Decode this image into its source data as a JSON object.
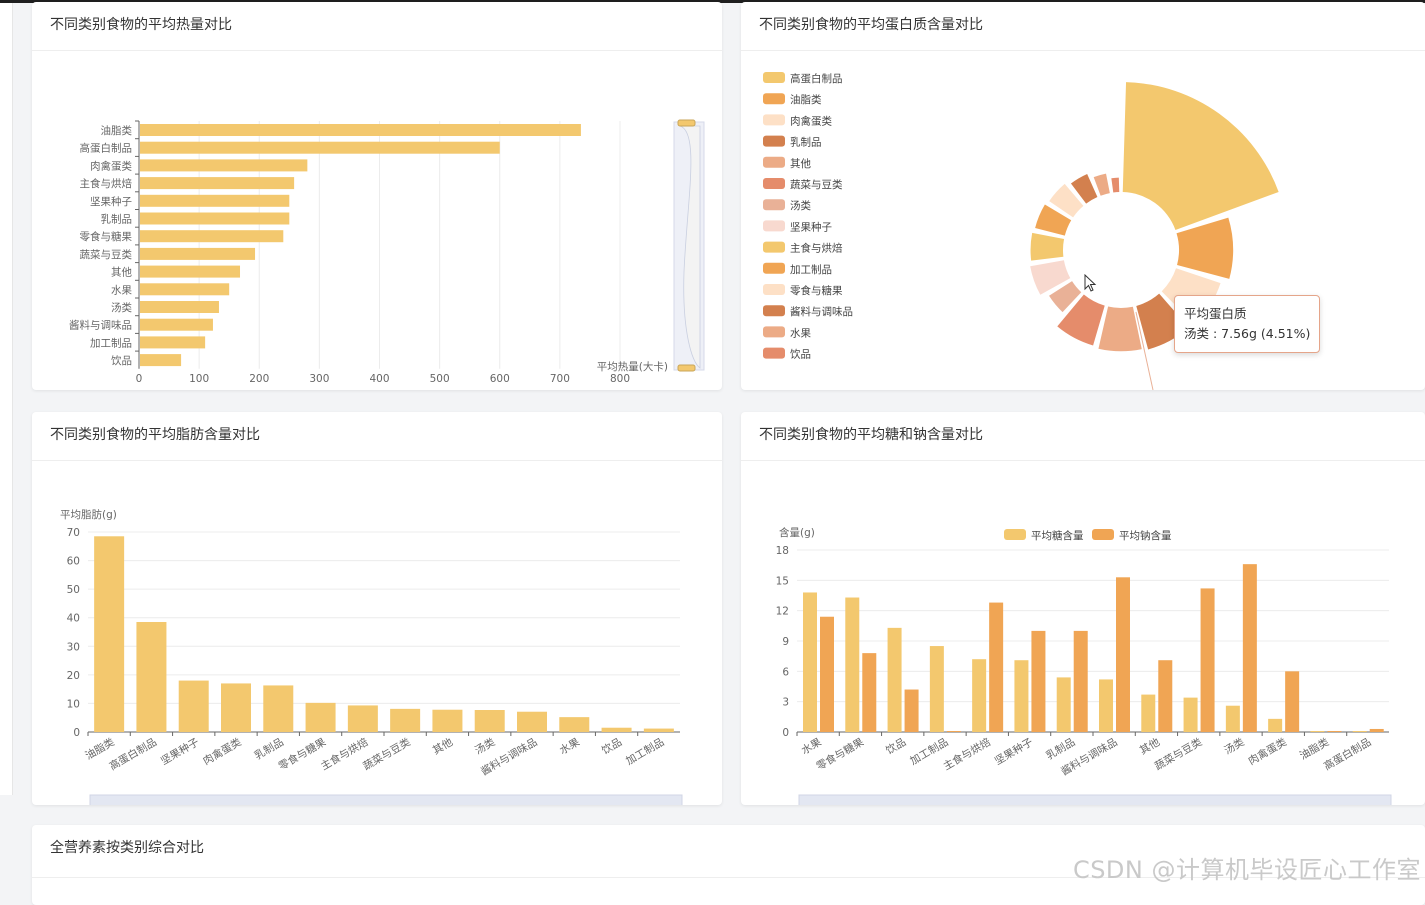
{
  "cards": {
    "calories_title": "不同类别食物的平均热量对比",
    "protein_title": "不同类别食物的平均蛋白质含量对比",
    "fat_title": "不同类别食物的平均脂肪含量对比",
    "sugar_title": "不同类别食物的平均糖和钠含量对比",
    "overall_title": "全营养素按类别综合对比"
  },
  "tooltip": {
    "title": "平均蛋白质",
    "text": "汤类 : 7.56g (4.51%)"
  },
  "watermark": "CSDN @计算机毕设匠心工作室",
  "colors": {
    "yellow": "#f3c86e",
    "orange": "#f0a554",
    "peach": "#fde0c6",
    "brown": "#d3804e",
    "salmon": "#ecab86",
    "coral": "#e58c6b",
    "tan": "#e9b197",
    "pink": "#f8d9cf"
  },
  "chart_data": [
    {
      "type": "bar",
      "orientation": "horizontal",
      "title": "不同类别食物的平均热量对比",
      "xlabel": "平均热量(大卡)",
      "categories": [
        "油脂类",
        "高蛋白制品",
        "肉禽蛋类",
        "主食与烘焙",
        "坚果种子",
        "乳制品",
        "零食与糖果",
        "蔬菜与豆类",
        "其他",
        "水果",
        "汤类",
        "酱料与调味品",
        "加工制品",
        "饮品"
      ],
      "values": [
        735,
        600,
        280,
        258,
        250,
        250,
        240,
        193,
        168,
        150,
        133,
        123,
        110,
        70
      ],
      "xlim": [
        0,
        800
      ],
      "xticks": [
        "0",
        "100",
        "200",
        "300",
        "400",
        "500",
        "600",
        "700",
        "800"
      ],
      "grid": true,
      "datazoom": "right"
    },
    {
      "type": "pie",
      "variant": "rose",
      "title": "不同类别食物的平均蛋白质含量对比",
      "legend_position": "left",
      "categories": [
        "高蛋白制品",
        "油脂类",
        "肉禽蛋类",
        "乳制品",
        "其他",
        "蔬菜与豆类",
        "汤类",
        "坚果种子",
        "主食与烘焙",
        "加工制品",
        "零食与糖果",
        "酱料与调味品",
        "水果",
        "饮品"
      ],
      "values": [
        30.5,
        15.0,
        13.0,
        12.5,
        12.0,
        11.5,
        7.56,
        9.5,
        9.0,
        8.5,
        8.0,
        7.0,
        5.5,
        4.0
      ],
      "category_colors": [
        "#f3c86e",
        "#f0a554",
        "#fde0c6",
        "#d3804e",
        "#ecab86",
        "#e58c6b",
        "#e9b197",
        "#f8d9cf",
        "#f3c86e",
        "#f0a554",
        "#fde0c6",
        "#d3804e",
        "#ecab86",
        "#e58c6b"
      ]
    },
    {
      "type": "bar",
      "title": "不同类别食物的平均脂肪含量对比",
      "ylabel": "平均脂肪(g)",
      "categories": [
        "油脂类",
        "高蛋白制品",
        "坚果种子",
        "肉禽蛋类",
        "乳制品",
        "零食与糖果",
        "主食与烘焙",
        "蔬菜与豆类",
        "其他",
        "汤类",
        "酱料与调味品",
        "水果",
        "饮品",
        "加工制品"
      ],
      "values": [
        68.5,
        38.5,
        18,
        17,
        16.3,
        10.2,
        9.3,
        8.1,
        7.8,
        7.7,
        7.1,
        5.2,
        1.5,
        1.2
      ],
      "ylim": [
        0,
        70
      ],
      "yticks": [
        "0",
        "10",
        "20",
        "30",
        "40",
        "50",
        "60",
        "70"
      ],
      "grid": true,
      "datazoom": "bottom"
    },
    {
      "type": "bar",
      "title": "不同类别食物的平均糖和钠含量对比",
      "ylabel": "含量(g)",
      "legend_position": "top",
      "categories": [
        "水果",
        "零食与糖果",
        "饮品",
        "加工制品",
        "主食与烘焙",
        "坚果种子",
        "乳制品",
        "酱料与调味品",
        "其他",
        "蔬菜与豆类",
        "汤类",
        "肉禽蛋类",
        "油脂类",
        "高蛋白制品"
      ],
      "series": [
        {
          "name": "平均糖含量",
          "values": [
            13.8,
            13.3,
            10.3,
            8.5,
            7.2,
            7.1,
            5.4,
            5.2,
            3.7,
            3.4,
            2.6,
            1.3,
            0.1,
            0.1
          ]
        },
        {
          "name": "平均钠含量",
          "values": [
            11.4,
            7.8,
            4.2,
            0.1,
            12.8,
            10.0,
            10.0,
            15.3,
            7.1,
            14.2,
            16.6,
            6.0,
            0.1,
            0.3
          ]
        }
      ],
      "ylim": [
        0,
        18
      ],
      "yticks": [
        "0",
        "3",
        "6",
        "9",
        "12",
        "15",
        "18"
      ],
      "grid": true,
      "datazoom": "bottom"
    }
  ]
}
